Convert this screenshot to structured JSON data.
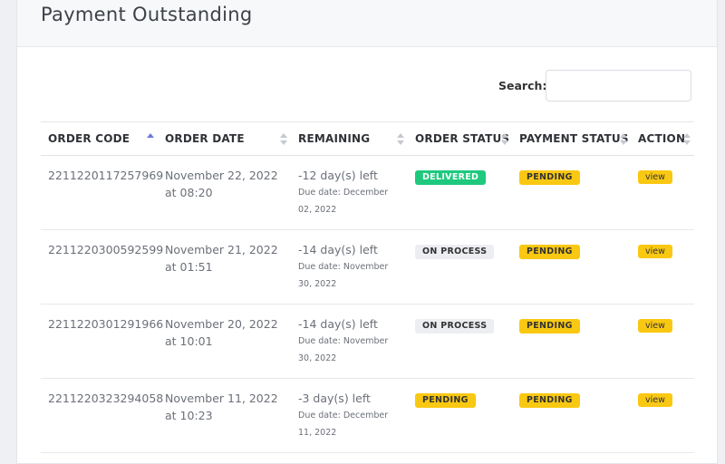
{
  "header": {
    "title": "Payment Outstanding"
  },
  "search": {
    "label": "Search:"
  },
  "table": {
    "columns": [
      "ORDER CODE",
      "ORDER DATE",
      "REMAINING",
      "ORDER STATUS",
      "PAYMENT STATUS",
      "ACTION"
    ],
    "rows": [
      {
        "order_code": "2211220117257969",
        "order_date": "November 22, 2022 at 08:20",
        "remaining": "-12 day(s) left",
        "due_date": "Due date: December 02, 2022",
        "order_status": "DELIVERED",
        "payment_status": "PENDING",
        "action": "view"
      },
      {
        "order_code": "2211220300592599",
        "order_date": "November 21, 2022 at 01:51",
        "remaining": "-14 day(s) left",
        "due_date": "Due date: November 30, 2022",
        "order_status": "ON PROCESS",
        "payment_status": "PENDING",
        "action": "view"
      },
      {
        "order_code": "2211220301291966",
        "order_date": "November 20, 2022 at 10:01",
        "remaining": "-14 day(s) left",
        "due_date": "Due date: November 30, 2022",
        "order_status": "ON PROCESS",
        "payment_status": "PENDING",
        "action": "view"
      },
      {
        "order_code": "2211220323294058",
        "order_date": "November 11, 2022 at 10:23",
        "remaining": "-3 day(s) left",
        "due_date": "Due date: December 11, 2022",
        "order_status": "PENDING",
        "payment_status": "PENDING",
        "action": "view"
      }
    ]
  }
}
